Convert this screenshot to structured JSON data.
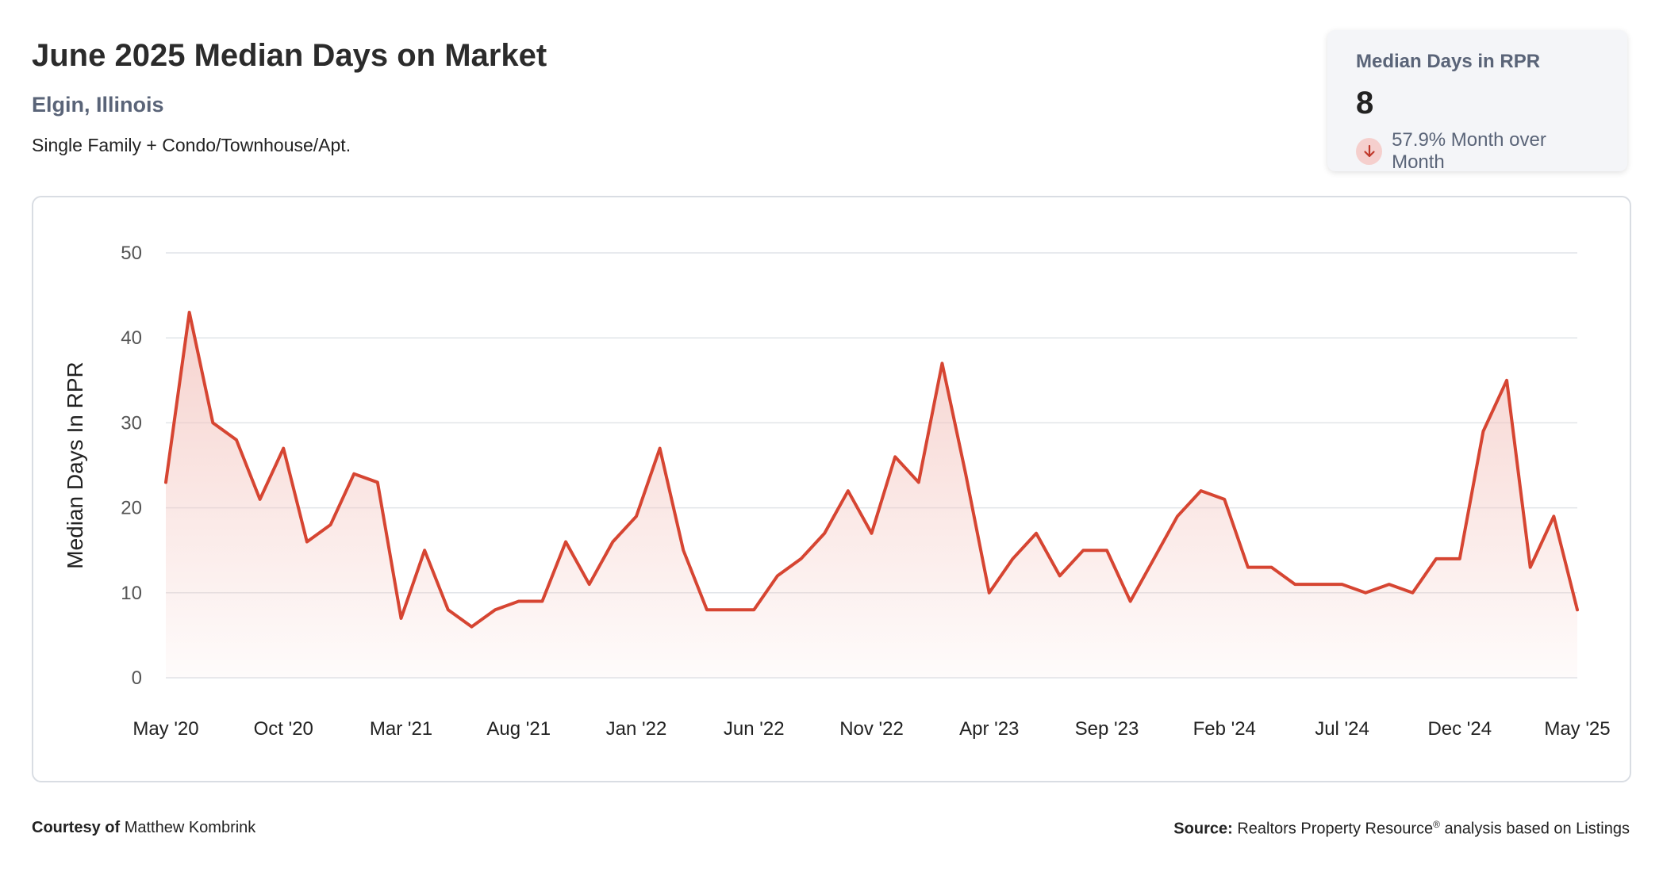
{
  "header": {
    "title": "June 2025 Median Days on Market",
    "subtitle": "Elgin, Illinois",
    "caption": "Single Family + Condo/Townhouse/Apt."
  },
  "stat_card": {
    "label": "Median Days in RPR",
    "value": "8",
    "change": "57.9% Month over Month",
    "icon": "arrow-down-icon",
    "icon_color": "#c0392b"
  },
  "footer": {
    "courtesy_label": "Courtesy of",
    "courtesy_name": "Matthew Kombrink",
    "source_label": "Source:",
    "source_text_a": "Realtors Property Resource",
    "source_mark": "®",
    "source_text_b": "analysis based on Listings"
  },
  "colors": {
    "line": "#d64532",
    "fill_top": "#f3c3bd",
    "grid": "#e1e4e8"
  },
  "chart_data": {
    "type": "area",
    "ylabel": "Median Days In RPR",
    "ylim": [
      0,
      50
    ],
    "yticks": [
      0,
      10,
      20,
      30,
      40,
      50
    ],
    "grid": true,
    "xtick_labels": [
      "May '20",
      "Oct '20",
      "Mar '21",
      "Aug '21",
      "Jan '22",
      "Jun '22",
      "Nov '22",
      "Apr '23",
      "Sep '23",
      "Feb '24",
      "Jul '24",
      "Dec '24",
      "May '25"
    ],
    "x": [
      "2020-05",
      "2020-06",
      "2020-07",
      "2020-08",
      "2020-09",
      "2020-10",
      "2020-11",
      "2020-12",
      "2021-01",
      "2021-02",
      "2021-03",
      "2021-04",
      "2021-05",
      "2021-06",
      "2021-07",
      "2021-08",
      "2021-09",
      "2021-10",
      "2021-11",
      "2021-12",
      "2022-01",
      "2022-02",
      "2022-03",
      "2022-04",
      "2022-05",
      "2022-06",
      "2022-07",
      "2022-08",
      "2022-09",
      "2022-10",
      "2022-11",
      "2022-12",
      "2023-01",
      "2023-02",
      "2023-03",
      "2023-04",
      "2023-05",
      "2023-06",
      "2023-07",
      "2023-08",
      "2023-09",
      "2023-10",
      "2023-11",
      "2023-12",
      "2024-01",
      "2024-02",
      "2024-03",
      "2024-04",
      "2024-05",
      "2024-06",
      "2024-07",
      "2024-08",
      "2024-09",
      "2024-10",
      "2024-11",
      "2024-12",
      "2025-01",
      "2025-02",
      "2025-03",
      "2025-04",
      "2025-05"
    ],
    "series": [
      {
        "values": [
          23,
          43,
          30,
          28,
          21,
          27,
          16,
          18,
          24,
          23,
          7,
          15,
          8,
          6,
          8,
          9,
          9,
          16,
          11,
          16,
          19,
          27,
          15,
          8,
          8,
          8,
          12,
          14,
          17,
          22,
          17,
          26,
          23,
          37,
          24,
          10,
          14,
          17,
          12,
          15,
          15,
          9,
          14,
          19,
          22,
          21,
          13,
          13,
          11,
          11,
          11,
          10,
          11,
          10,
          14,
          14,
          29,
          35,
          13,
          19,
          8
        ]
      }
    ]
  }
}
